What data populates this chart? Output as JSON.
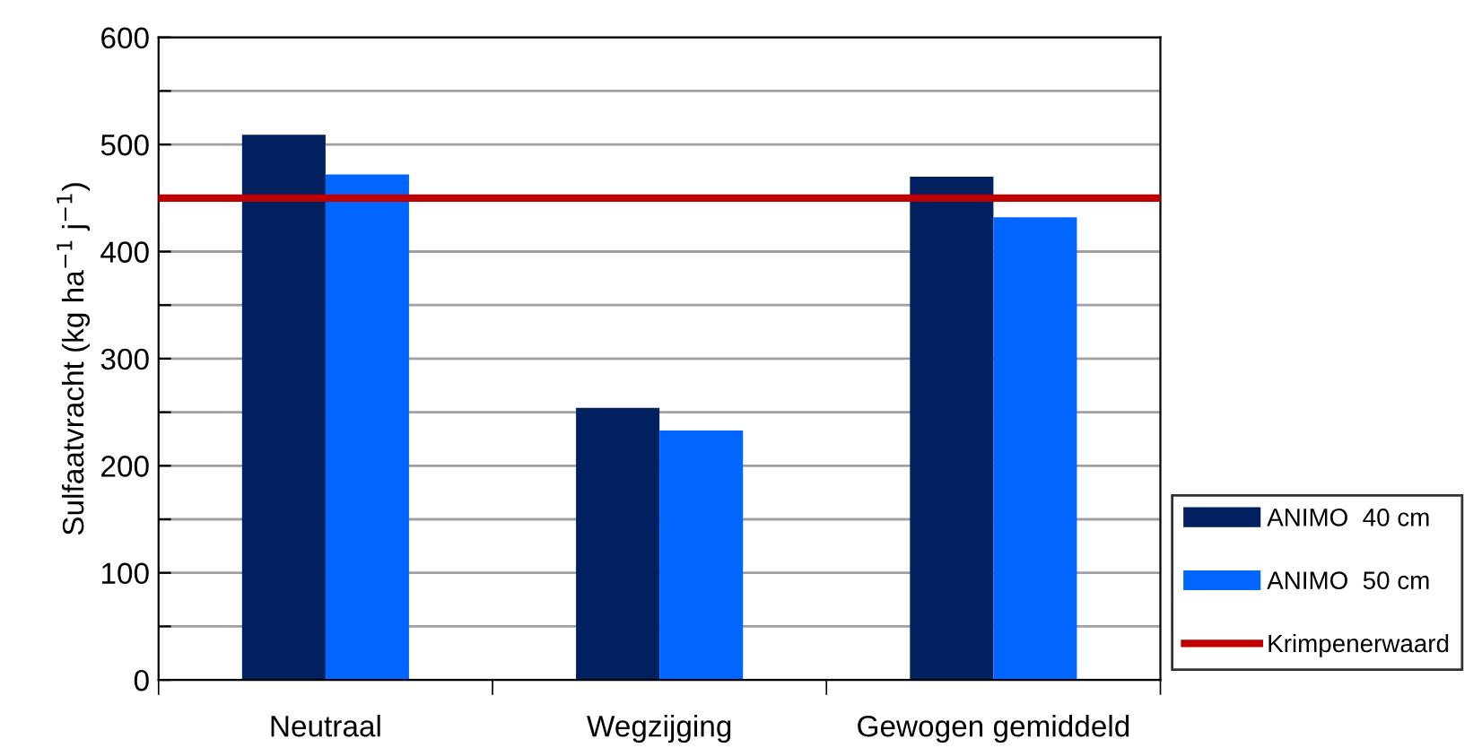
{
  "chart_data": {
    "type": "bar",
    "ylabel": "Sulfaatvracht (kg ha$^{−1}$ j$^{−1}$)",
    "categories": [
      "Neutraal",
      "Wegzijging",
      "Gewogen gemiddeld"
    ],
    "series": [
      {
        "name": "ANIMO  40 cm",
        "color": "#002060",
        "values": [
          509,
          254,
          470
        ]
      },
      {
        "name": "ANIMO  50 cm",
        "color": "#0066ff",
        "values": [
          472,
          233,
          432
        ]
      }
    ],
    "ref_lines": [
      {
        "axis": "y",
        "value": 450,
        "label": "Krimpenerwaard",
        "color": "#c00000"
      }
    ],
    "ylim": [
      0,
      600
    ],
    "yticks": [
      0,
      {
        "value": 50,
        "label": null
      },
      100,
      {
        "value": 150,
        "label": null
      },
      200,
      {
        "value": 250,
        "label": null
      },
      300,
      {
        "value": 350,
        "label": null
      },
      400,
      {
        "value": 450,
        "label": null
      },
      500,
      {
        "value": 550,
        "label": null
      },
      600
    ],
    "grid": "y",
    "legend": "right"
  }
}
